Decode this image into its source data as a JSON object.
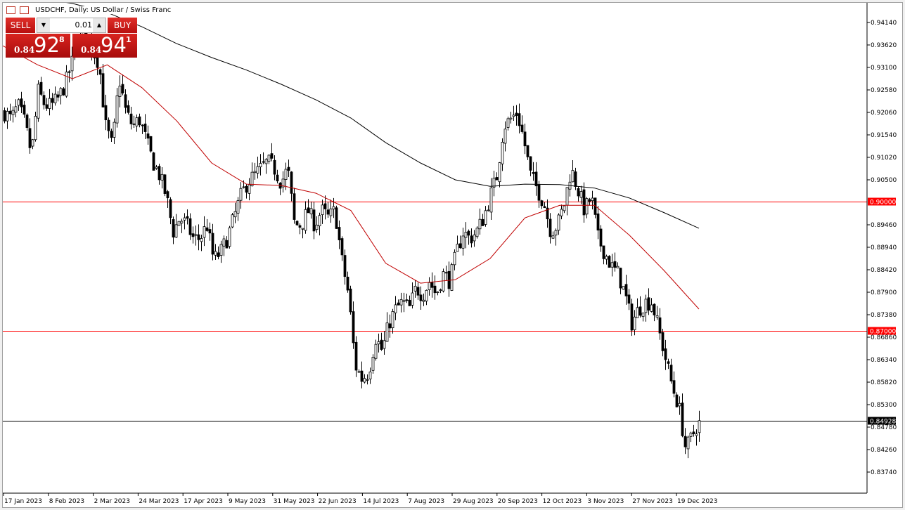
{
  "window": {
    "title": "USDCHF, Daily:  US Dollar / Swiss Franc"
  },
  "trade_panel": {
    "sell_label": "SELL",
    "buy_label": "BUY",
    "lot": "0.01",
    "bid": {
      "prefix": "0.84",
      "big": "92",
      "pip": "8"
    },
    "ask": {
      "prefix": "0.84",
      "big": "94",
      "pip": "1"
    },
    "color": "#c81818"
  },
  "chart_data": {
    "type": "candlestick",
    "symbol": "USDCHF",
    "timeframe": "Daily",
    "ylim": [
      0.8305,
      0.9466
    ],
    "y_ticks": [
      "0.94140",
      "0.93620",
      "0.93100",
      "0.92580",
      "0.92060",
      "0.91540",
      "0.91020",
      "0.90500",
      "0.89460",
      "0.88940",
      "0.88420",
      "0.87900",
      "0.87380",
      "0.86860",
      "0.86340",
      "0.85820",
      "0.85300",
      "0.84780",
      "0.84260",
      "0.83740"
    ],
    "x_ticks": [
      "17 Jan 2023",
      "8 Feb 2023",
      "2 Mar 2023",
      "24 Mar 2023",
      "17 Apr 2023",
      "9 May 2023",
      "31 May 2023",
      "22 Jun 2023",
      "14 Jul 2023",
      "7 Aug 2023",
      "29 Aug 2023",
      "20 Sep 2023",
      "12 Oct 2023",
      "3 Nov 2023",
      "27 Nov 2023",
      "19 Dec 2023"
    ],
    "closes_sampled": [
      0.9206,
      0.919,
      0.9222,
      0.9182,
      0.9109,
      0.9255,
      0.9222,
      0.9222,
      0.9239,
      0.9271,
      0.932,
      0.9369,
      0.9401,
      0.9352,
      0.932,
      0.9174,
      0.9125,
      0.9287,
      0.9206,
      0.9174,
      0.919,
      0.9141,
      0.9092,
      0.906,
      0.9011,
      0.893,
      0.8962,
      0.8946,
      0.8914,
      0.8914,
      0.8946,
      0.8865,
      0.8881,
      0.8914,
      0.8962,
      0.9011,
      0.9044,
      0.906,
      0.9076,
      0.9092,
      0.9076,
      0.9044,
      0.9076,
      0.8946,
      0.8946,
      0.8979,
      0.8946,
      0.8979,
      0.8962,
      0.8979,
      0.8865,
      0.8784,
      0.8621,
      0.8589,
      0.8605,
      0.8686,
      0.8654,
      0.8719,
      0.8751,
      0.8767,
      0.8751,
      0.88,
      0.8784,
      0.8816,
      0.8784,
      0.8832,
      0.8816,
      0.8881,
      0.893,
      0.8914,
      0.893,
      0.8962,
      0.9011,
      0.906,
      0.9174,
      0.919,
      0.9206,
      0.9141,
      0.906,
      0.9028,
      0.8995,
      0.893,
      0.8946,
      0.8995,
      0.9076,
      0.9028,
      0.8979,
      0.9011,
      0.8914,
      0.8881,
      0.8849,
      0.8832,
      0.8784,
      0.8719,
      0.8751,
      0.8767,
      0.8767,
      0.8702,
      0.8637,
      0.8572,
      0.8524,
      0.8426,
      0.8459,
      0.8493
    ],
    "ma_slow": {
      "color": "#000000",
      "values": [
        0.9482,
        0.9471,
        0.9458,
        0.9437,
        0.9404,
        0.9365,
        0.9333,
        0.9304,
        0.9271,
        0.9235,
        0.9193,
        0.9136,
        0.9089,
        0.905,
        0.9035,
        0.904,
        0.9039,
        0.9031,
        0.9008,
        0.8974,
        0.8938
      ]
    },
    "ma_fast": {
      "color": "#c00000",
      "values": [
        0.936,
        0.9316,
        0.9284,
        0.9316,
        0.9263,
        0.9186,
        0.9089,
        0.904,
        0.9037,
        0.9019,
        0.8979,
        0.8857,
        0.8811,
        0.8819,
        0.8868,
        0.8962,
        0.8991,
        0.8991,
        0.8922,
        0.884,
        0.8751
      ]
    },
    "hlines": [
      {
        "price": 0.9,
        "label": "0.90000",
        "color": "#ff0000"
      },
      {
        "price": 0.87,
        "label": "0.87000",
        "color": "#ff0000"
      },
      {
        "price": 0.84928,
        "label": "0.84928",
        "color": "#000000"
      }
    ]
  }
}
